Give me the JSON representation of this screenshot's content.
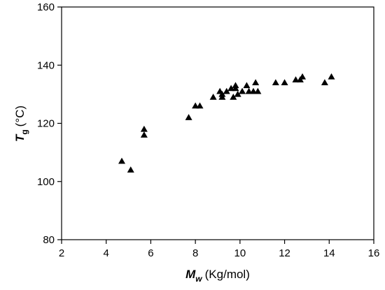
{
  "chart_data": {
    "type": "scatter",
    "title": "",
    "xlabel": {
      "symbol": "M",
      "subscript": "w",
      "unit": "(Kg/mol)"
    },
    "ylabel": {
      "symbol": "T",
      "subscript": "g",
      "unit": "(°C)"
    },
    "xlim": [
      2,
      16
    ],
    "ylim": [
      80,
      160
    ],
    "xticks": [
      2,
      4,
      6,
      8,
      10,
      12,
      14,
      16
    ],
    "yticks": [
      80,
      100,
      120,
      140,
      160
    ],
    "grid": false,
    "legend": "none",
    "marker": "filled-triangle",
    "marker_color": "#000000",
    "series": [
      {
        "points": [
          {
            "x": 4.7,
            "y": 107
          },
          {
            "x": 5.1,
            "y": 104
          },
          {
            "x": 5.7,
            "y": 118
          },
          {
            "x": 5.7,
            "y": 116
          },
          {
            "x": 7.7,
            "y": 122
          },
          {
            "x": 8.0,
            "y": 126
          },
          {
            "x": 8.2,
            "y": 126
          },
          {
            "x": 8.8,
            "y": 129
          },
          {
            "x": 9.1,
            "y": 131
          },
          {
            "x": 9.2,
            "y": 130
          },
          {
            "x": 9.2,
            "y": 129
          },
          {
            "x": 9.4,
            "y": 131
          },
          {
            "x": 9.6,
            "y": 132
          },
          {
            "x": 9.8,
            "y": 133
          },
          {
            "x": 9.8,
            "y": 132
          },
          {
            "x": 9.7,
            "y": 129
          },
          {
            "x": 9.9,
            "y": 130
          },
          {
            "x": 10.1,
            "y": 131
          },
          {
            "x": 10.3,
            "y": 133
          },
          {
            "x": 10.4,
            "y": 131
          },
          {
            "x": 10.6,
            "y": 131
          },
          {
            "x": 10.7,
            "y": 134
          },
          {
            "x": 10.8,
            "y": 131
          },
          {
            "x": 11.6,
            "y": 134
          },
          {
            "x": 12.0,
            "y": 134
          },
          {
            "x": 12.5,
            "y": 135
          },
          {
            "x": 12.7,
            "y": 135
          },
          {
            "x": 12.8,
            "y": 136
          },
          {
            "x": 13.8,
            "y": 134
          },
          {
            "x": 14.1,
            "y": 136
          }
        ]
      }
    ]
  }
}
